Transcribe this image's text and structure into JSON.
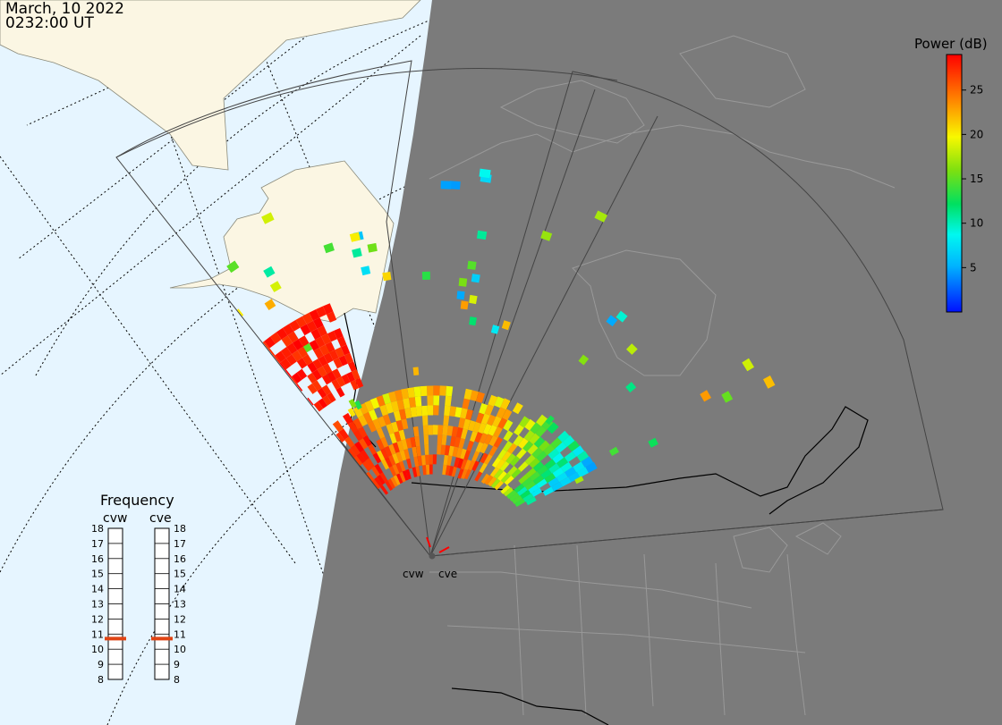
{
  "header": {
    "date": "March, 10 2022",
    "time": "0232:00 UT"
  },
  "colors": {
    "ocean_day": "#e6f5ff",
    "land_day": "#fbf6e3",
    "night": "#7b7b7b",
    "night_border": "#999999",
    "dotted_grid": "#000000",
    "fov_outline": "#444444",
    "freq_marker": "#e04414"
  },
  "colorbar": {
    "title": "Power (dB)",
    "ticks": [
      "25",
      "20",
      "15",
      "10",
      "5"
    ],
    "tick_values": [
      25,
      20,
      15,
      10,
      5
    ],
    "min": 0,
    "max": 29
  },
  "frequency_panel": {
    "title": "Frequency",
    "radars": [
      {
        "name": "cvw",
        "freq_mhz": 10.7
      },
      {
        "name": "cve",
        "freq_mhz": 10.7
      }
    ],
    "ticks": [
      "18",
      "17",
      "16",
      "15",
      "14",
      "13",
      "12",
      "11",
      "10",
      "9",
      "8"
    ]
  },
  "radar_labels": [
    "cvw",
    "cve"
  ],
  "echoes": {
    "legend": "echo power in dB mapped to colour scale",
    "count_hint": "many scattered range-gate cells"
  }
}
